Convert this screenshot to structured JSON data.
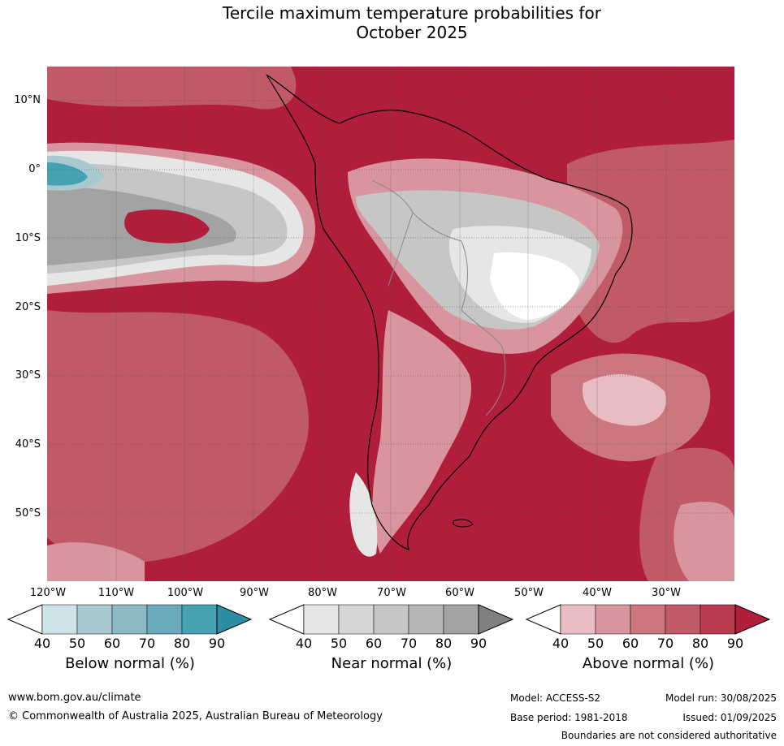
{
  "title_line1": "Tercile maximum temperature probabilities for",
  "title_line2": "October 2025",
  "lat_labels": [
    "10°N",
    "0°",
    "10°S",
    "20°S",
    "30°S",
    "40°S",
    "50°S"
  ],
  "lon_labels": [
    "120°W",
    "110°W",
    "100°W",
    "90°W",
    "80°W",
    "70°W",
    "60°W",
    "50°W",
    "40°W",
    "30°W"
  ],
  "colorbars": [
    {
      "label": "Below normal (%)",
      "ticks": [
        "40",
        "50",
        "60",
        "70",
        "80",
        "90"
      ],
      "colors": [
        "#ffffff",
        "#cde3e9",
        "#a9c9d0",
        "#8bbac4",
        "#6aabbb",
        "#46a1b3",
        "#2d8da3"
      ]
    },
    {
      "label": "Near normal (%)",
      "ticks": [
        "40",
        "50",
        "60",
        "70",
        "80",
        "90"
      ],
      "colors": [
        "#ffffff",
        "#e6e6e6",
        "#d6d6d6",
        "#c6c6c6",
        "#b5b5b5",
        "#a3a3a3",
        "#808080"
      ]
    },
    {
      "label": "Above normal (%)",
      "ticks": [
        "40",
        "50",
        "60",
        "70",
        "80",
        "90"
      ],
      "colors": [
        "#ffffff",
        "#e8bcc1",
        "#d9959e",
        "#cc7680",
        "#c05a67",
        "#b83a4e",
        "#b01e3b"
      ]
    }
  ],
  "footer": {
    "website": "www.bom.gov.au/climate",
    "copyright": "© Commonwealth of Australia 2025, Australian Bureau of Meteorology",
    "model": "Model: ACCESS-S2",
    "base_period": "Base period: 1981-2018",
    "model_run": "Model run: 30/08/2025",
    "issued": "Issued: 01/09/2025",
    "disclaimer": "Boundaries are not considered authoritative"
  }
}
